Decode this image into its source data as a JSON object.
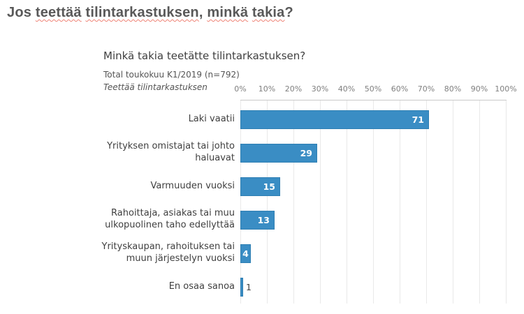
{
  "page_title": {
    "text": "Jos teettää tilintarkastuksen, minkä takia?",
    "segments": [
      {
        "text": "Jos ",
        "misspelled": false
      },
      {
        "text": "teettää",
        "misspelled": true
      },
      {
        "text": " ",
        "misspelled": false
      },
      {
        "text": "tilintarkastuksen",
        "misspelled": true
      },
      {
        "text": ", ",
        "misspelled": false
      },
      {
        "text": "minkä",
        "misspelled": true
      },
      {
        "text": " ",
        "misspelled": false
      },
      {
        "text": "takia",
        "misspelled": true
      },
      {
        "text": "?",
        "misspelled": false
      }
    ]
  },
  "chart": {
    "title": "Minkä takia teetätte tilintarkastuksen?",
    "subtitle": "Total toukokuu K1/2019 (n=792)",
    "series_note": "Teettää tilintarkastuksen"
  },
  "chart_data": {
    "type": "bar",
    "orientation": "horizontal",
    "title": "Minkä takia teetätte tilintarkastuksen?",
    "subtitle": "Total toukokuu K1/2019 (n=792)",
    "series_name": "Teettää tilintarkastuksen",
    "categories": [
      "Laki vaatii",
      "Yrityksen omistajat tai johto haluavat",
      "Varmuuden vuoksi",
      "Rahoittaja, asiakas tai muu ulkopuolinen taho edellyttää",
      "Yrityskaupan, rahoituksen tai muun järjestelyn vuoksi",
      "En osaa sanoa"
    ],
    "values": [
      71,
      29,
      15,
      13,
      4,
      1
    ],
    "unit": "%",
    "xlim": [
      0,
      100
    ],
    "x_ticks": [
      "0%",
      "10%",
      "20%",
      "30%",
      "40%",
      "50%",
      "60%",
      "70%",
      "80%",
      "90%",
      "100%"
    ],
    "grid": true,
    "legend": false,
    "value_labels": true
  },
  "colors": {
    "bar": "#3a8dc4",
    "bar_border": "#2f7fb3",
    "value_label_inside": "#ffffff",
    "value_label_outside": "#3f3f3f",
    "spellcheck_underline": "#ee8275",
    "gridline": "#e9e9e9",
    "axis": "#c9c9c9"
  }
}
